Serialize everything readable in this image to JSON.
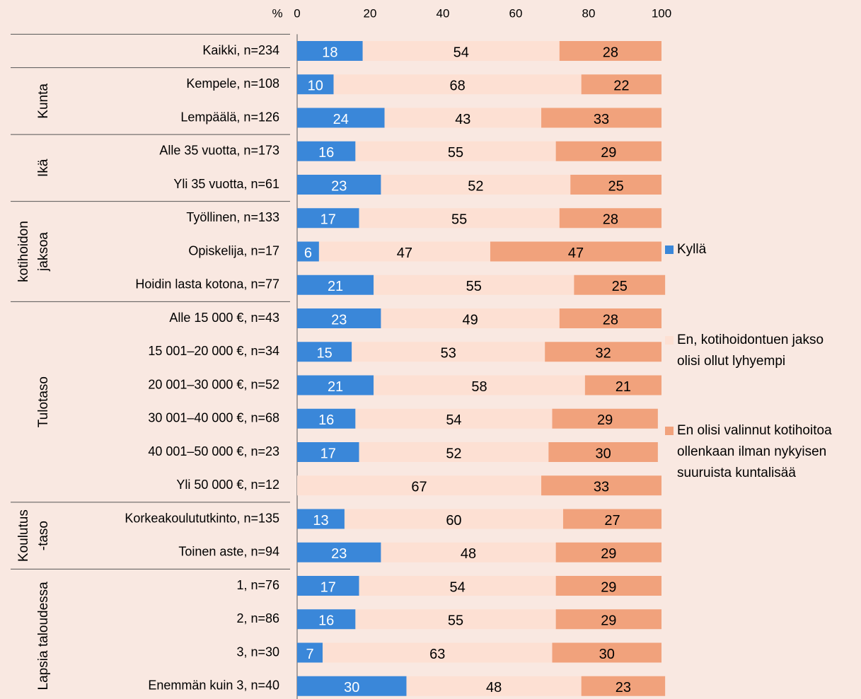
{
  "chart_data": {
    "type": "stacked-bar-horizontal",
    "axis_label": "%",
    "xlim": [
      0,
      100
    ],
    "xticks": [
      0,
      20,
      40,
      60,
      80,
      100
    ],
    "categories": [
      "Kaikki, n=234",
      "Kempele, n=108",
      "Lempäälä, n=126",
      "Alle 35 vuotta, n=173",
      "Yli 35 vuotta, n=61",
      "Työllinen, n=133",
      "Opiskelija, n=17",
      "Hoidin lasta kotona, n=77",
      "Alle 15 000 €, n=43",
      "15 001–20 000 €, n=34",
      "20 001–30 000 €, n=52",
      "30 001–40 000 €, n=68",
      "40 001–50 000 €, n=23",
      "Yli 50 000 €, n=12",
      "Korkeakoulututkinto, n=135",
      "Toinen aste, n=94",
      "1, n=76",
      "2, n=86",
      "3, n=30",
      "Enemmän kuin 3, n=40"
    ],
    "groups": [
      {
        "label": [],
        "rows": 1
      },
      {
        "label": [
          "Kunta"
        ],
        "rows": 2
      },
      {
        "label": [
          "Ikä"
        ],
        "rows": 2
      },
      {
        "label": [
          "kotihoidon",
          "jaksoa"
        ],
        "rows": 3
      },
      {
        "label": [
          "Tulotaso"
        ],
        "rows": 6
      },
      {
        "label": [
          "Koulutus",
          "-taso"
        ],
        "rows": 2
      },
      {
        "label": [
          "Lapsia taloudessa"
        ],
        "rows": 4
      }
    ],
    "series": [
      {
        "name": "Kyllä",
        "color": "#3a87d9",
        "label_color": "#ffffff",
        "values": [
          18,
          10,
          24,
          16,
          23,
          17,
          6,
          21,
          23,
          15,
          21,
          16,
          17,
          0,
          13,
          23,
          17,
          16,
          7,
          30
        ]
      },
      {
        "name": "En, kotihoidontuen jakso olisi ollut lyhyempi",
        "color": "#fde0d3",
        "label_color": "#000000",
        "values": [
          54,
          68,
          43,
          55,
          52,
          55,
          47,
          55,
          49,
          53,
          58,
          54,
          52,
          67,
          60,
          48,
          54,
          55,
          63,
          48
        ]
      },
      {
        "name": "En olisi valinnut kotihoitoa ollenkaan ilman nykyisen suuruista kuntalisää",
        "color": "#f1a27c",
        "label_color": "#000000",
        "values": [
          28,
          22,
          33,
          29,
          25,
          28,
          47,
          25,
          28,
          32,
          21,
          29,
          30,
          33,
          27,
          29,
          29,
          29,
          30,
          23
        ]
      }
    ]
  }
}
